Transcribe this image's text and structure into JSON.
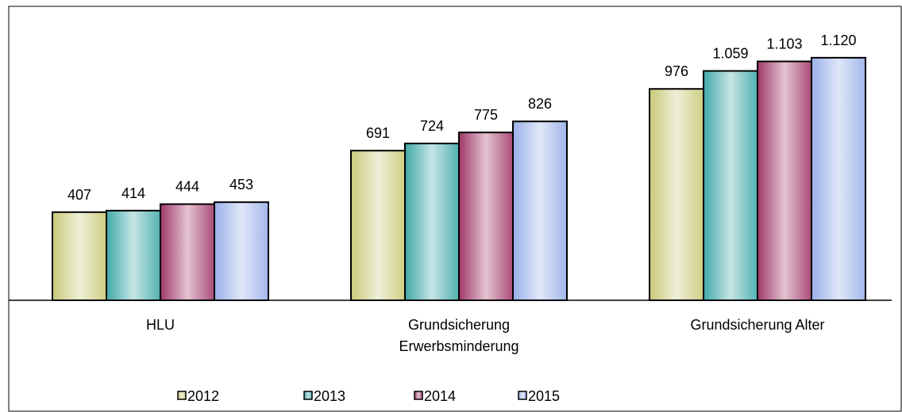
{
  "chart_data": {
    "type": "bar",
    "categories": [
      "HLU",
      "Grundsicherung Erwerbsminderung",
      "Grundsicherung Alter"
    ],
    "series": [
      {
        "name": "2012",
        "color": "#c8c878",
        "values": [
          407,
          691,
          976
        ],
        "value_labels": [
          "407",
          "691",
          "976"
        ]
      },
      {
        "name": "2013",
        "color": "#40a8a8",
        "values": [
          414,
          724,
          1059
        ],
        "value_labels": [
          "414",
          "724",
          "1.059"
        ]
      },
      {
        "name": "2014",
        "color": "#a03868",
        "values": [
          444,
          775,
          1103
        ],
        "value_labels": [
          "444",
          "775",
          "1.103"
        ]
      },
      {
        "name": "2015",
        "color": "#98b0e8",
        "values": [
          453,
          826,
          1120
        ],
        "value_labels": [
          "453",
          "826",
          "1.120"
        ]
      }
    ],
    "ylim": [
      0,
      1350
    ],
    "legend": "bottom"
  }
}
